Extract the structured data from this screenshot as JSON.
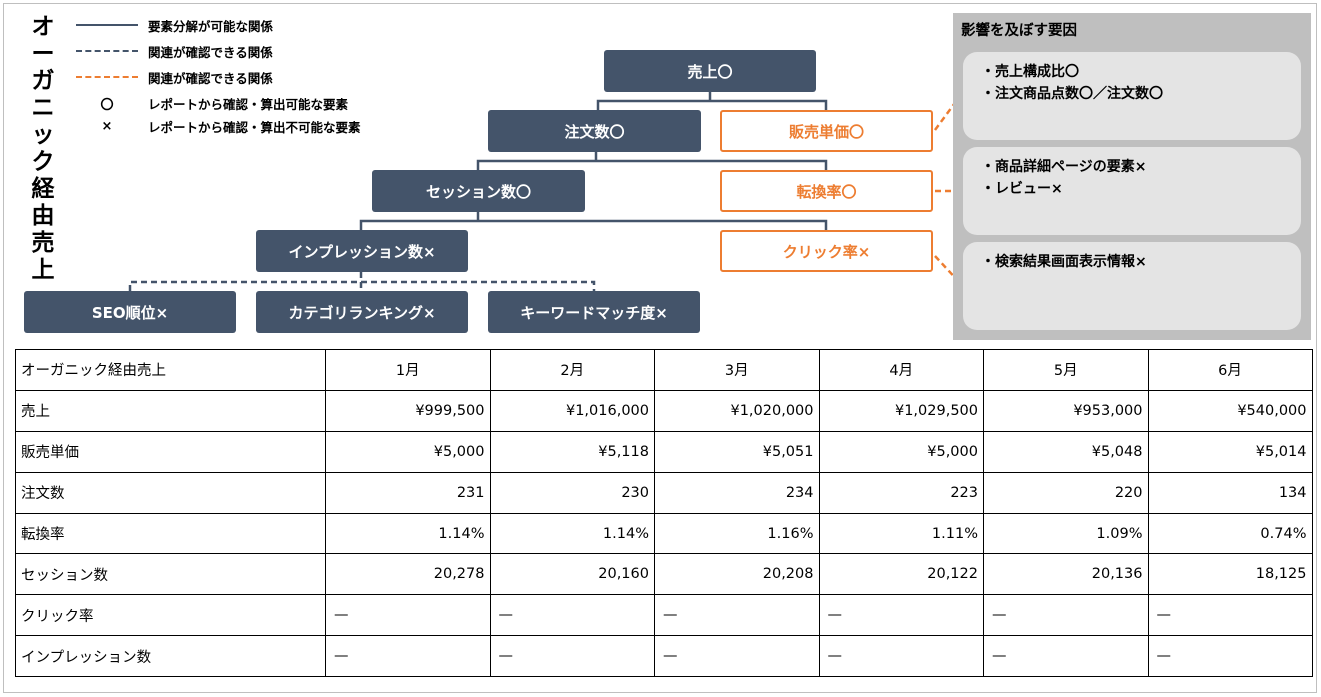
{
  "side_title": "オーガニック経由売上",
  "legend": [
    {
      "kind": "solid",
      "color": "#44546a",
      "label": "要素分解が可能な関係"
    },
    {
      "kind": "dashed",
      "color": "#44546a",
      "label": "関連が確認できる関係"
    },
    {
      "kind": "dashed",
      "color": "#ed7d31",
      "label": "関連が確認できる関係"
    },
    {
      "kind": "symbol",
      "symbol": "〇",
      "label": "レポートから確認・算出可能な要素"
    },
    {
      "kind": "symbol",
      "symbol": "×",
      "label": "レポートから確認・算出不可能な要素"
    }
  ],
  "tree": {
    "sales": "売上〇",
    "orders": "注文数〇",
    "unit_price": "販売単価〇",
    "sessions": "セッション数〇",
    "cvr": "転換率〇",
    "impressions": "インプレッション数×",
    "ctr": "クリック率×",
    "seo_rank": "SEO順位×",
    "category_ranking": "カテゴリランキング×",
    "keyword_match": "キーワードマッチ度×"
  },
  "factors": {
    "title": "影響を及ぼす要因",
    "boxes": [
      [
        "・売上構成比〇",
        "・注文商品点数〇／注文数〇"
      ],
      [
        "・商品詳細ページの要素×",
        "・レビュー×"
      ],
      [
        "・検索結果画面表示情報×"
      ]
    ]
  },
  "colors": {
    "node_dark": "#44546a",
    "accent_orange": "#ed7d31",
    "factor_panel": "#bfbfbf",
    "factor_box": "#e4e4e4"
  },
  "table": {
    "header": [
      "オーガニック経由売上",
      "1月",
      "2月",
      "3月",
      "4月",
      "5月",
      "6月"
    ],
    "rows": [
      {
        "label": "売上",
        "values": [
          "¥999,500",
          "¥1,016,000",
          "¥1,020,000",
          "¥1,029,500",
          "¥953,000",
          "¥540,000"
        ]
      },
      {
        "label": "販売単価",
        "values": [
          "¥5,000",
          "¥5,118",
          "¥5,051",
          "¥5,000",
          "¥5,048",
          "¥5,014"
        ]
      },
      {
        "label": "注文数",
        "values": [
          "231",
          "230",
          "234",
          "223",
          "220",
          "134"
        ]
      },
      {
        "label": "転換率",
        "values": [
          "1.14%",
          "1.14%",
          "1.16%",
          "1.11%",
          "1.09%",
          "0.74%"
        ]
      },
      {
        "label": "セッション数",
        "values": [
          "20,278",
          "20,160",
          "20,208",
          "20,122",
          "20,136",
          "18,125"
        ]
      },
      {
        "label": "クリック率",
        "values": [
          "—",
          "—",
          "—",
          "—",
          "—",
          "—"
        ]
      },
      {
        "label": "インプレッション数",
        "values": [
          "—",
          "—",
          "—",
          "—",
          "—",
          "—"
        ]
      }
    ]
  }
}
